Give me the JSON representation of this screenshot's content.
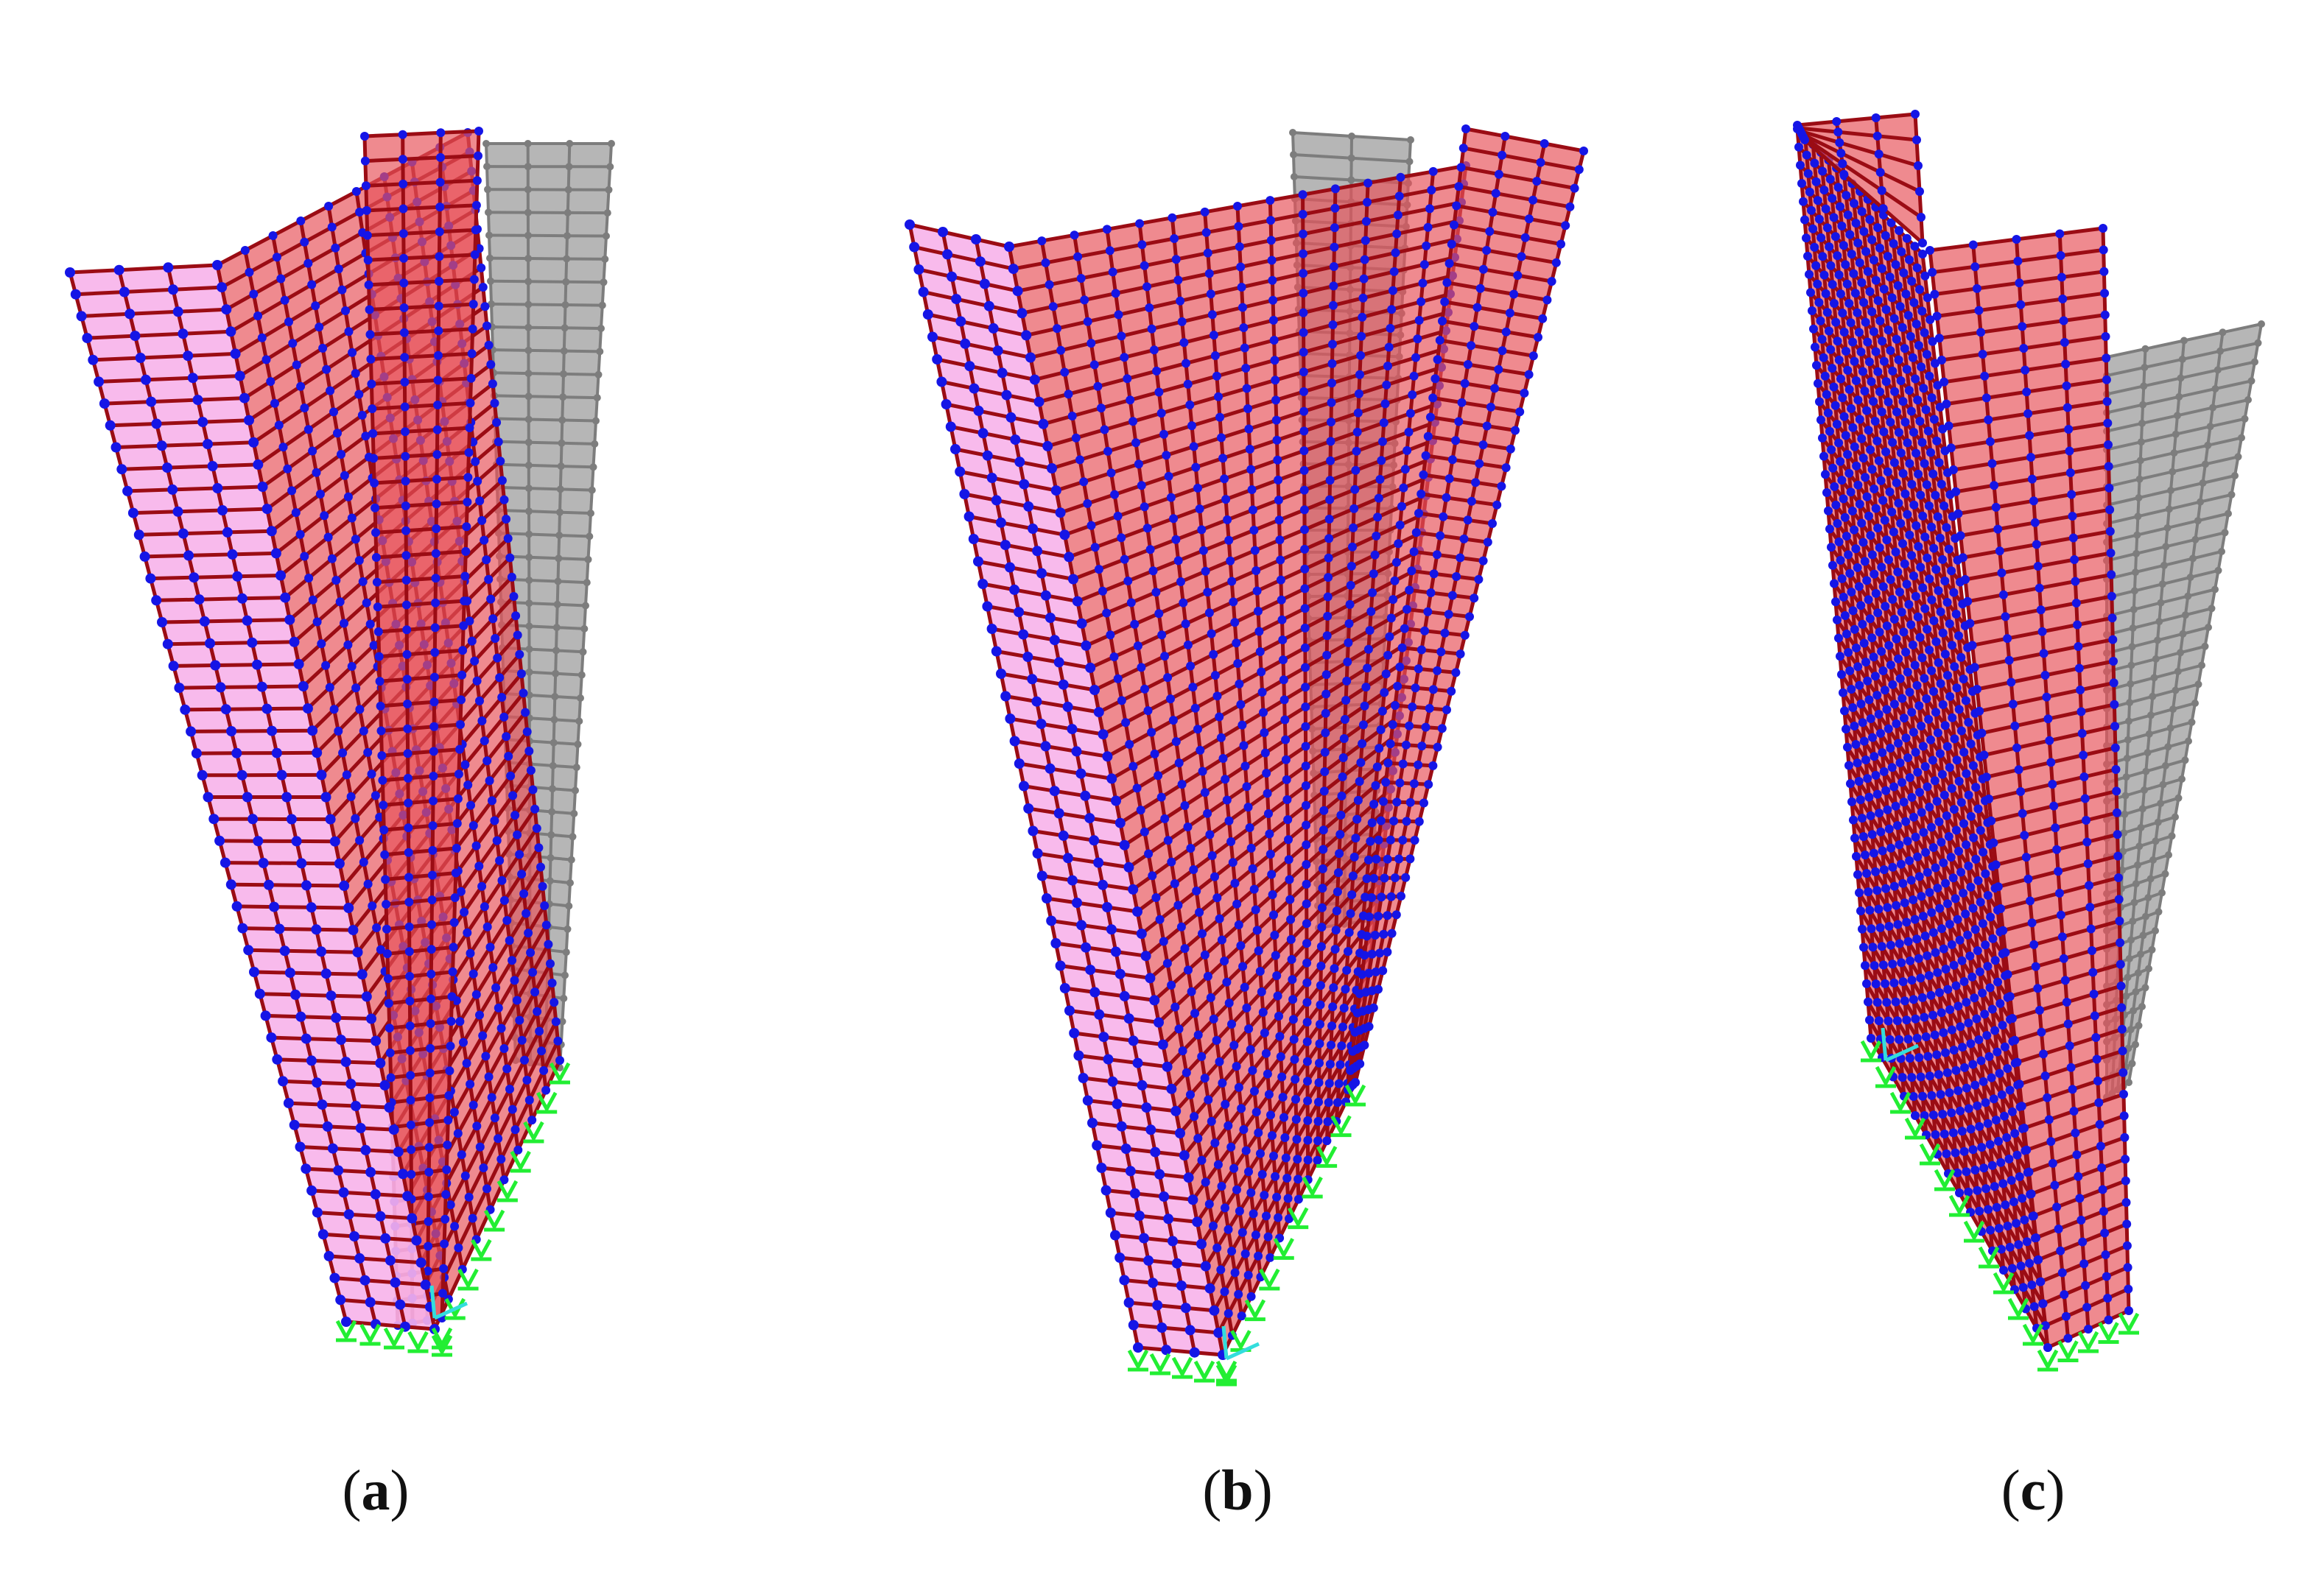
{
  "panels": [
    {
      "id": "a",
      "letter": "a"
    },
    {
      "id": "b",
      "letter": "b"
    },
    {
      "id": "c",
      "letter": "c"
    }
  ],
  "colors": {
    "deformed_fill_light": "#f7b3ea",
    "deformed_fill_dark": "#e8525a",
    "element_edge": "#9b0c14",
    "node": "#1515e6",
    "undeformed_fill": "#a9a9a9",
    "undeformed_edge": "#7d7d7d",
    "support": "#22ee33",
    "axes_marker": "#33dddd"
  }
}
